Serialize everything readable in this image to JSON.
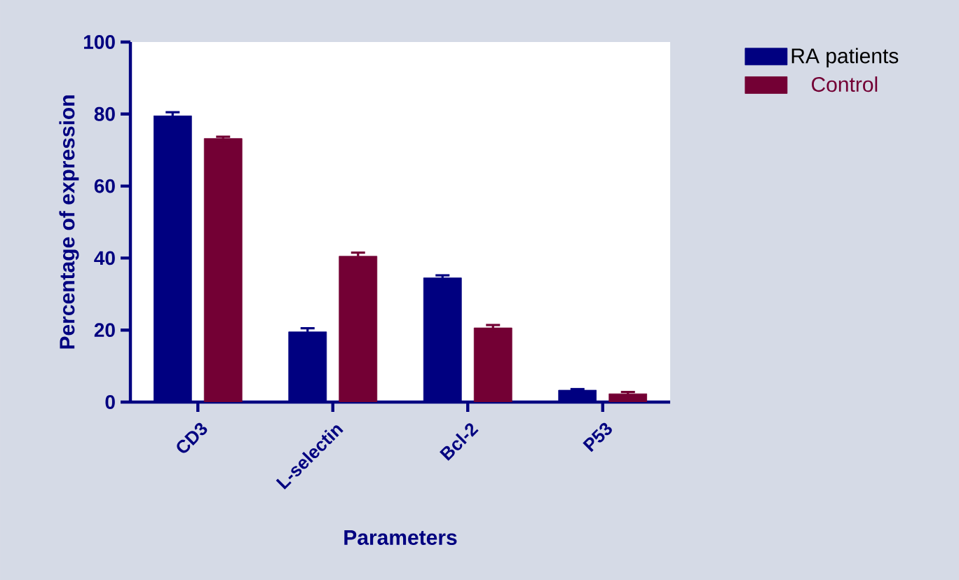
{
  "chart_data": {
    "type": "bar",
    "xlabel": "Parameters",
    "ylabel": "Percentage of expression",
    "categories": [
      "CD3",
      "L-selectin",
      "Bcl-2",
      "P53"
    ],
    "series": [
      {
        "name": "RA patients",
        "color": "#000080",
        "values": [
          79.5,
          19.5,
          34.5,
          3.3
        ],
        "errors": [
          1,
          1,
          0.7,
          0.3
        ]
      },
      {
        "name": "Control",
        "color": "#730034",
        "values": [
          73.2,
          40.5,
          20.6,
          2.3
        ],
        "errors": [
          0.5,
          1,
          0.8,
          0.5
        ]
      }
    ],
    "ylim": [
      0,
      100
    ],
    "yticks": [
      0,
      20,
      40,
      60,
      80,
      100
    ],
    "legend": "top right"
  }
}
